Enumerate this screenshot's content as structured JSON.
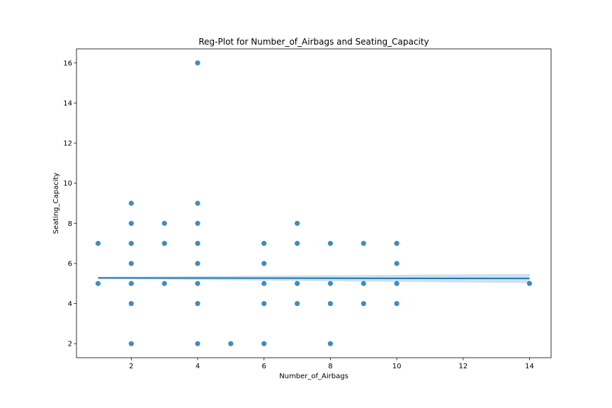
{
  "chart_data": {
    "type": "scatter",
    "title": "Reg-Plot for Number_of_Airbags and Seating_Capacity",
    "xlabel": "Number_of_Airbags",
    "ylabel": "Seating_Capacity",
    "xlim": [
      0.35,
      14.65
    ],
    "ylim": [
      1.3,
      16.7
    ],
    "xticks": [
      2,
      4,
      6,
      8,
      10,
      12,
      14
    ],
    "yticks": [
      2,
      4,
      6,
      8,
      10,
      12,
      14,
      16
    ],
    "grid": false,
    "point_color": "#1f77b4",
    "line_color": "#1f77b4",
    "band_color": "#aecde3",
    "points": [
      [
        1,
        5
      ],
      [
        1,
        7
      ],
      [
        2,
        2
      ],
      [
        2,
        4
      ],
      [
        2,
        5
      ],
      [
        2,
        6
      ],
      [
        2,
        7
      ],
      [
        2,
        8
      ],
      [
        2,
        9
      ],
      [
        3,
        5
      ],
      [
        3,
        7
      ],
      [
        3,
        8
      ],
      [
        4,
        2
      ],
      [
        4,
        4
      ],
      [
        4,
        5
      ],
      [
        4,
        6
      ],
      [
        4,
        7
      ],
      [
        4,
        8
      ],
      [
        4,
        9
      ],
      [
        4,
        16
      ],
      [
        5,
        2
      ],
      [
        6,
        2
      ],
      [
        6,
        4
      ],
      [
        6,
        5
      ],
      [
        6,
        6
      ],
      [
        6,
        7
      ],
      [
        7,
        4
      ],
      [
        7,
        5
      ],
      [
        7,
        7
      ],
      [
        7,
        8
      ],
      [
        8,
        2
      ],
      [
        8,
        4
      ],
      [
        8,
        5
      ],
      [
        8,
        7
      ],
      [
        9,
        4
      ],
      [
        9,
        5
      ],
      [
        9,
        7
      ],
      [
        10,
        4
      ],
      [
        10,
        5
      ],
      [
        10,
        6
      ],
      [
        10,
        7
      ],
      [
        14,
        5
      ]
    ],
    "regression": {
      "x": [
        1,
        14
      ],
      "y": [
        5.28,
        5.25
      ],
      "ci_lower": [
        5.23,
        5.02
      ],
      "ci_upper": [
        5.33,
        5.48
      ]
    }
  }
}
